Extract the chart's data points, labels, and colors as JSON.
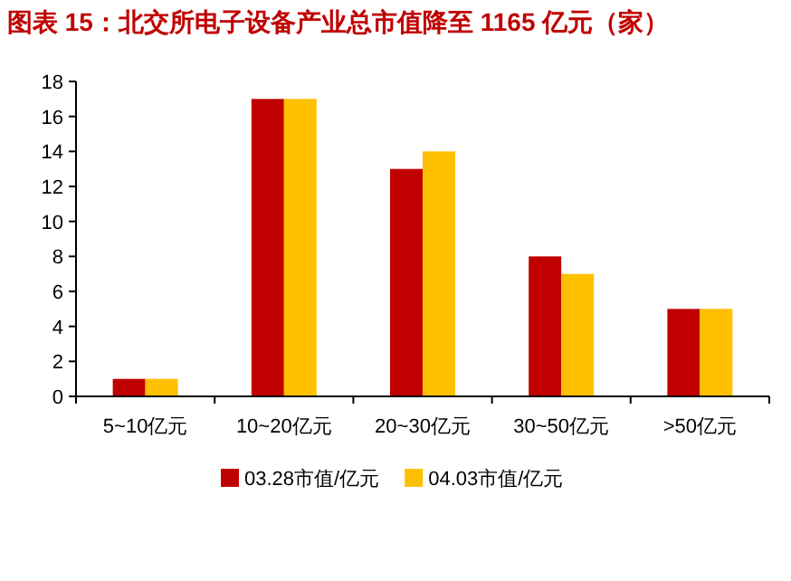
{
  "chart_data": {
    "type": "bar",
    "title": "图表 15：北交所电子设备产业总市值降至 1165 亿元（家）",
    "categories": [
      "5~10亿元",
      "10~20亿元",
      "20~30亿元",
      "30~50亿元",
      ">50亿元"
    ],
    "series": [
      {
        "name": "03.28市值/亿元",
        "color": "#c00000",
        "values": [
          1,
          17,
          13,
          8,
          5
        ]
      },
      {
        "name": "04.03市值/亿元",
        "color": "#ffc000",
        "values": [
          1,
          17,
          14,
          7,
          5
        ]
      }
    ],
    "ylim": [
      0,
      18
    ],
    "yticks": [
      0,
      2,
      4,
      6,
      8,
      10,
      12,
      14,
      16,
      18
    ],
    "legend": "bottom"
  }
}
